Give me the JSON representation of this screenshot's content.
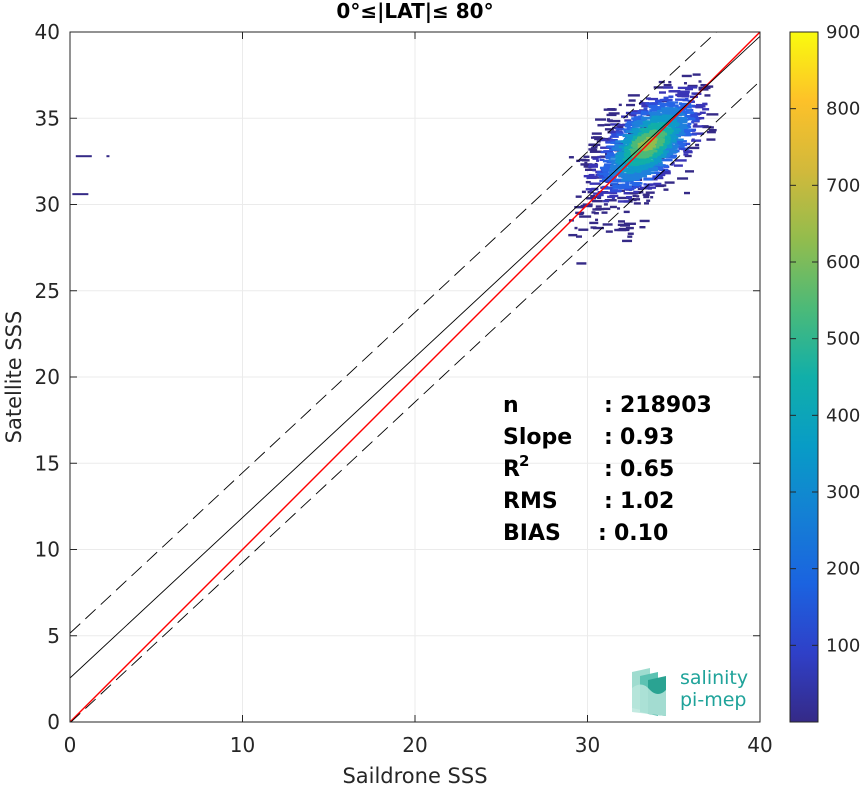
{
  "chart_data": {
    "type": "heatmap",
    "title": "0°≤|LAT|≤ 80°",
    "xlabel": "Saildrone SSS",
    "ylabel": "Satellite SSS",
    "xlim": [
      0,
      40
    ],
    "ylim": [
      0,
      40
    ],
    "xticks": [
      "0",
      "10",
      "20",
      "30",
      "40"
    ],
    "yticks": [
      "0",
      "5",
      "10",
      "15",
      "20",
      "25",
      "30",
      "35",
      "40"
    ],
    "grid": true,
    "colorbar": {
      "colormap": "parula",
      "range": [
        0,
        900
      ],
      "ticks": [
        "100",
        "200",
        "300",
        "400",
        "500",
        "600",
        "700",
        "800",
        "900"
      ]
    },
    "lines": [
      {
        "kind": "identity",
        "color": "#ff0000",
        "slope": 1.0,
        "intercept": 0.0
      },
      {
        "kind": "fit",
        "color": "#000000",
        "slope": 0.93,
        "intercept": 2.55
      },
      {
        "kind": "fit-upper",
        "color": "#000000",
        "dash": true,
        "slope": 0.93,
        "intercept": 5.15
      },
      {
        "kind": "fit-lower",
        "color": "#000000",
        "dash": true,
        "slope": 0.93,
        "intercept": -0.05
      }
    ],
    "density_cluster": {
      "center_x": 33.5,
      "center_y": 33.5,
      "x_range": [
        28,
        37.3
      ],
      "y_range": [
        26.5,
        38.5
      ]
    },
    "outliers": [
      {
        "x": 0.8,
        "y": 32.8
      },
      {
        "x": 2.2,
        "y": 32.8
      },
      {
        "x": 0.6,
        "y": 30.6
      }
    ],
    "stats": [
      {
        "label": "n",
        "sep": ": ",
        "value": "218903"
      },
      {
        "label": "Slope",
        "sep": ": ",
        "value": "0.93"
      },
      {
        "label": "R",
        "sup": "2",
        "sep": ": ",
        "value": "0.65"
      },
      {
        "label": "RMS",
        "sep": ": ",
        "value": "1.02"
      },
      {
        "label": "BIAS",
        "sep": ": ",
        "value": "0.10"
      }
    ]
  },
  "logo": {
    "line1": "salinity",
    "line2": "pi-mep"
  }
}
